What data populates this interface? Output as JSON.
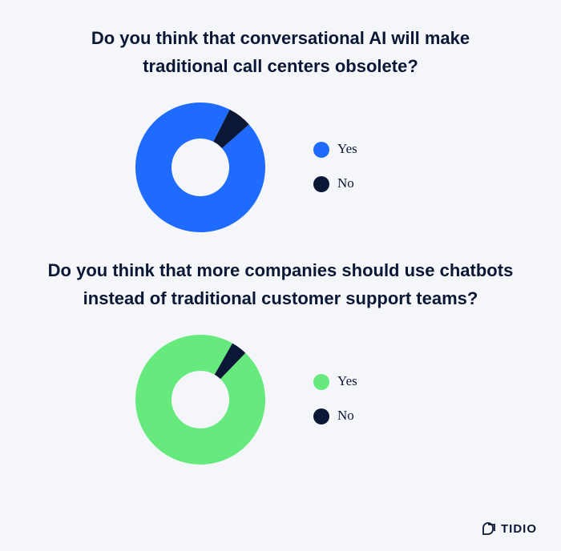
{
  "chart_data": [
    {
      "type": "pie",
      "title": "Do you think that conversational AI will make traditional call centers obsolete?",
      "categories": [
        "Yes",
        "No"
      ],
      "values": [
        94,
        6
      ],
      "colors": [
        "#1f6bff",
        "#0b1835"
      ],
      "donut": true
    },
    {
      "type": "pie",
      "title": "Do you think that more companies should use chatbots instead of traditional customer support teams?",
      "categories": [
        "Yes",
        "No"
      ],
      "values": [
        96,
        4
      ],
      "colors": [
        "#66ea7e",
        "#0b1835"
      ],
      "donut": true
    }
  ],
  "footer": {
    "logo": "TIDIO"
  }
}
